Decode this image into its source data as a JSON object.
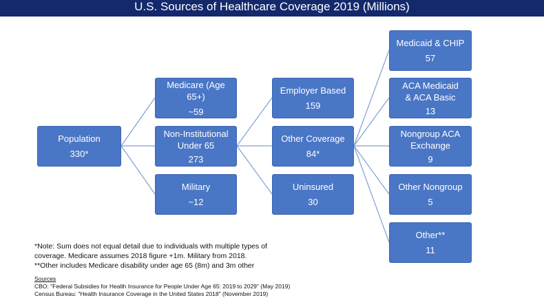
{
  "title": "U.S. Sources of Healthcare Coverage 2019 (Millions)",
  "colors": {
    "title_bar": "#13296b",
    "node_fill": "#4a76c6",
    "connector": "#7d9fd6"
  },
  "nodes": {
    "population": {
      "label": "Population",
      "value": "330*"
    },
    "medicare": {
      "label": "Medicare (Age 65+)",
      "value": "~59"
    },
    "non_institutional": {
      "label": "Non-Institutional Under 65",
      "value": "273"
    },
    "military": {
      "label": "Military",
      "value": "~12"
    },
    "employer": {
      "label": "Employer Based",
      "value": "159"
    },
    "other_coverage": {
      "label": "Other Coverage",
      "value": "84*"
    },
    "uninsured": {
      "label": "Uninsured",
      "value": "30"
    },
    "medicaid_chip": {
      "label": "Medicaid & CHIP",
      "value": "57"
    },
    "aca_medicaid": {
      "label": "ACA Medicaid & ACA Basic",
      "value": "13"
    },
    "nongroup_aca": {
      "label": "Nongroup ACA Exchange",
      "value": "9"
    },
    "other_nongroup": {
      "label": "Other Nongroup",
      "value": "5"
    },
    "other": {
      "label": "Other**",
      "value": "11"
    }
  },
  "notes": {
    "line1": "*Note:  Sum does not equal detail due to individuals with multiple types of coverage.  Medicare assumes 2018 figure +1m. Military from 2018.",
    "line2": "**Other includes Medicare disability under age 65 (8m) and 3m other"
  },
  "sources": {
    "header": "Sources",
    "cbo": "CBO: \"Federal Subsidies for Health Insurance for People Under Age 65: 2019 to 2029\" (May 2019)",
    "census": "Census Bureau: \"Health Insurance Coverage in the United States 2018\" (November 2019)"
  }
}
